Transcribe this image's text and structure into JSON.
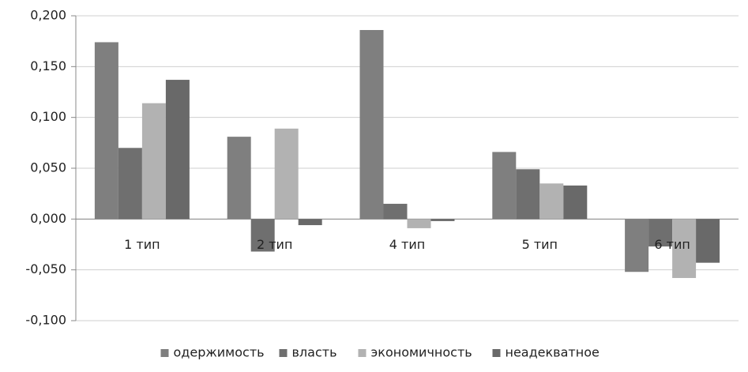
{
  "chart_data": {
    "type": "bar",
    "categories": [
      "1 тип",
      "2 тип",
      "4 тип",
      "5 тип",
      "6 тип"
    ],
    "series": [
      {
        "name": "одержимость",
        "color": "#7f7f7f",
        "values": [
          0.174,
          0.081,
          0.186,
          0.066,
          -0.052
        ]
      },
      {
        "name": "власть",
        "color": "#6f6f6f",
        "values": [
          0.07,
          -0.032,
          0.015,
          0.049,
          -0.027
        ]
      },
      {
        "name": "экономичность",
        "color": "#b2b2b2",
        "values": [
          0.114,
          0.089,
          -0.009,
          0.035,
          -0.058
        ]
      },
      {
        "name": "неадекватное",
        "color": "#696969",
        "values": [
          0.137,
          -0.006,
          -0.002,
          0.033,
          -0.043
        ]
      }
    ],
    "ylim": [
      -0.1,
      0.2
    ],
    "yticks": [
      {
        "value": -0.1,
        "label": "-0,100"
      },
      {
        "value": -0.05,
        "label": "-0,050"
      },
      {
        "value": 0,
        "label": "0,000"
      },
      {
        "value": 0.05,
        "label": "0,050"
      },
      {
        "value": 0.1,
        "label": "0,100"
      },
      {
        "value": 0.15,
        "label": "0,150"
      },
      {
        "value": 0.2,
        "label": "0,200"
      }
    ],
    "grid": true,
    "legend": "bottom"
  }
}
